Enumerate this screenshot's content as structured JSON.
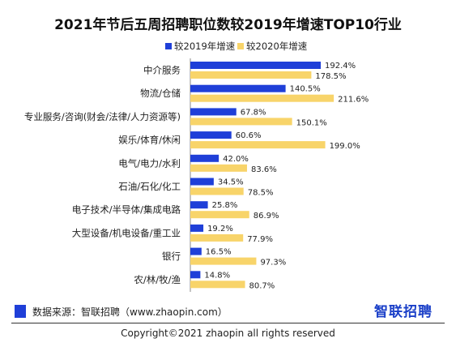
{
  "chart_data": {
    "type": "bar",
    "orientation": "horizontal",
    "title": "2021年节后五周招聘职位数较2019年增速TOP10行业",
    "categories": [
      "中介服务",
      "物流/仓储",
      "专业服务/咨询(财会/法律/人力资源等)",
      "娱乐/体育/休闲",
      "电气/电力/水利",
      "石油/石化/化工",
      "电子技术/半导体/集成电路",
      "大型设备/机电设备/重工业",
      "银行",
      "农/林/牧/渔"
    ],
    "series": [
      {
        "name": "较2019年增速",
        "color": "#1f3fd8",
        "values": [
          192.4,
          140.5,
          67.8,
          60.6,
          42.0,
          34.5,
          25.8,
          19.2,
          16.5,
          14.8
        ],
        "labels": [
          "192.4%",
          "140.5%",
          "67.8%",
          "60.6%",
          "42.0%",
          "34.5%",
          "25.8%",
          "19.2%",
          "16.5%",
          "14.8%"
        ]
      },
      {
        "name": "较2020年增速",
        "color": "#f8d46a",
        "values": [
          178.5,
          211.6,
          150.1,
          199.0,
          83.6,
          78.5,
          86.9,
          77.9,
          97.3,
          80.7
        ],
        "labels": [
          "178.5%",
          "211.6%",
          "150.1%",
          "199.0%",
          "83.6%",
          "78.5%",
          "86.9%",
          "77.9%",
          "97.3%",
          "80.7%"
        ]
      }
    ],
    "unit": "%",
    "legend_position": "top-right",
    "grid": false
  },
  "footer": {
    "source": "数据来源：智联招聘（www.zhaopin.com）",
    "brand": "智联招聘",
    "copyright": "Copyright©2021 zhaopin all rights reserved"
  }
}
